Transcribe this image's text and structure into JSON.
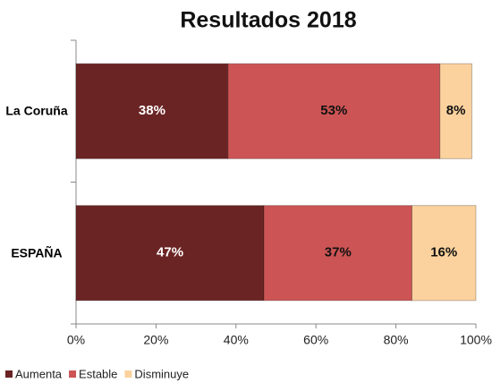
{
  "chart_data": {
    "type": "stacked_barh",
    "title": "Resultados 2018",
    "categories": [
      "La Coruña",
      "ESPAÑA"
    ],
    "series": [
      {
        "name": "Aumenta",
        "color": "#6b2424",
        "values": [
          38,
          47
        ],
        "value_labels": [
          "38%",
          "47%"
        ]
      },
      {
        "name": "Estable",
        "color": "#cd5454",
        "values": [
          53,
          37
        ],
        "value_labels": [
          "53%",
          "37%"
        ]
      },
      {
        "name": "Disminuye",
        "color": "#fbd29e",
        "values": [
          8,
          16
        ],
        "value_labels": [
          "8%",
          "16%"
        ]
      }
    ],
    "xlim": [
      0,
      100
    ],
    "xticks": [
      {
        "value": 0,
        "label": "0%"
      },
      {
        "value": 20,
        "label": "20%"
      },
      {
        "value": 40,
        "label": "40%"
      },
      {
        "value": 60,
        "label": "60%"
      },
      {
        "value": 80,
        "label": "80%"
      },
      {
        "value": 100,
        "label": "100%"
      }
    ],
    "legend": "bottom-left"
  }
}
